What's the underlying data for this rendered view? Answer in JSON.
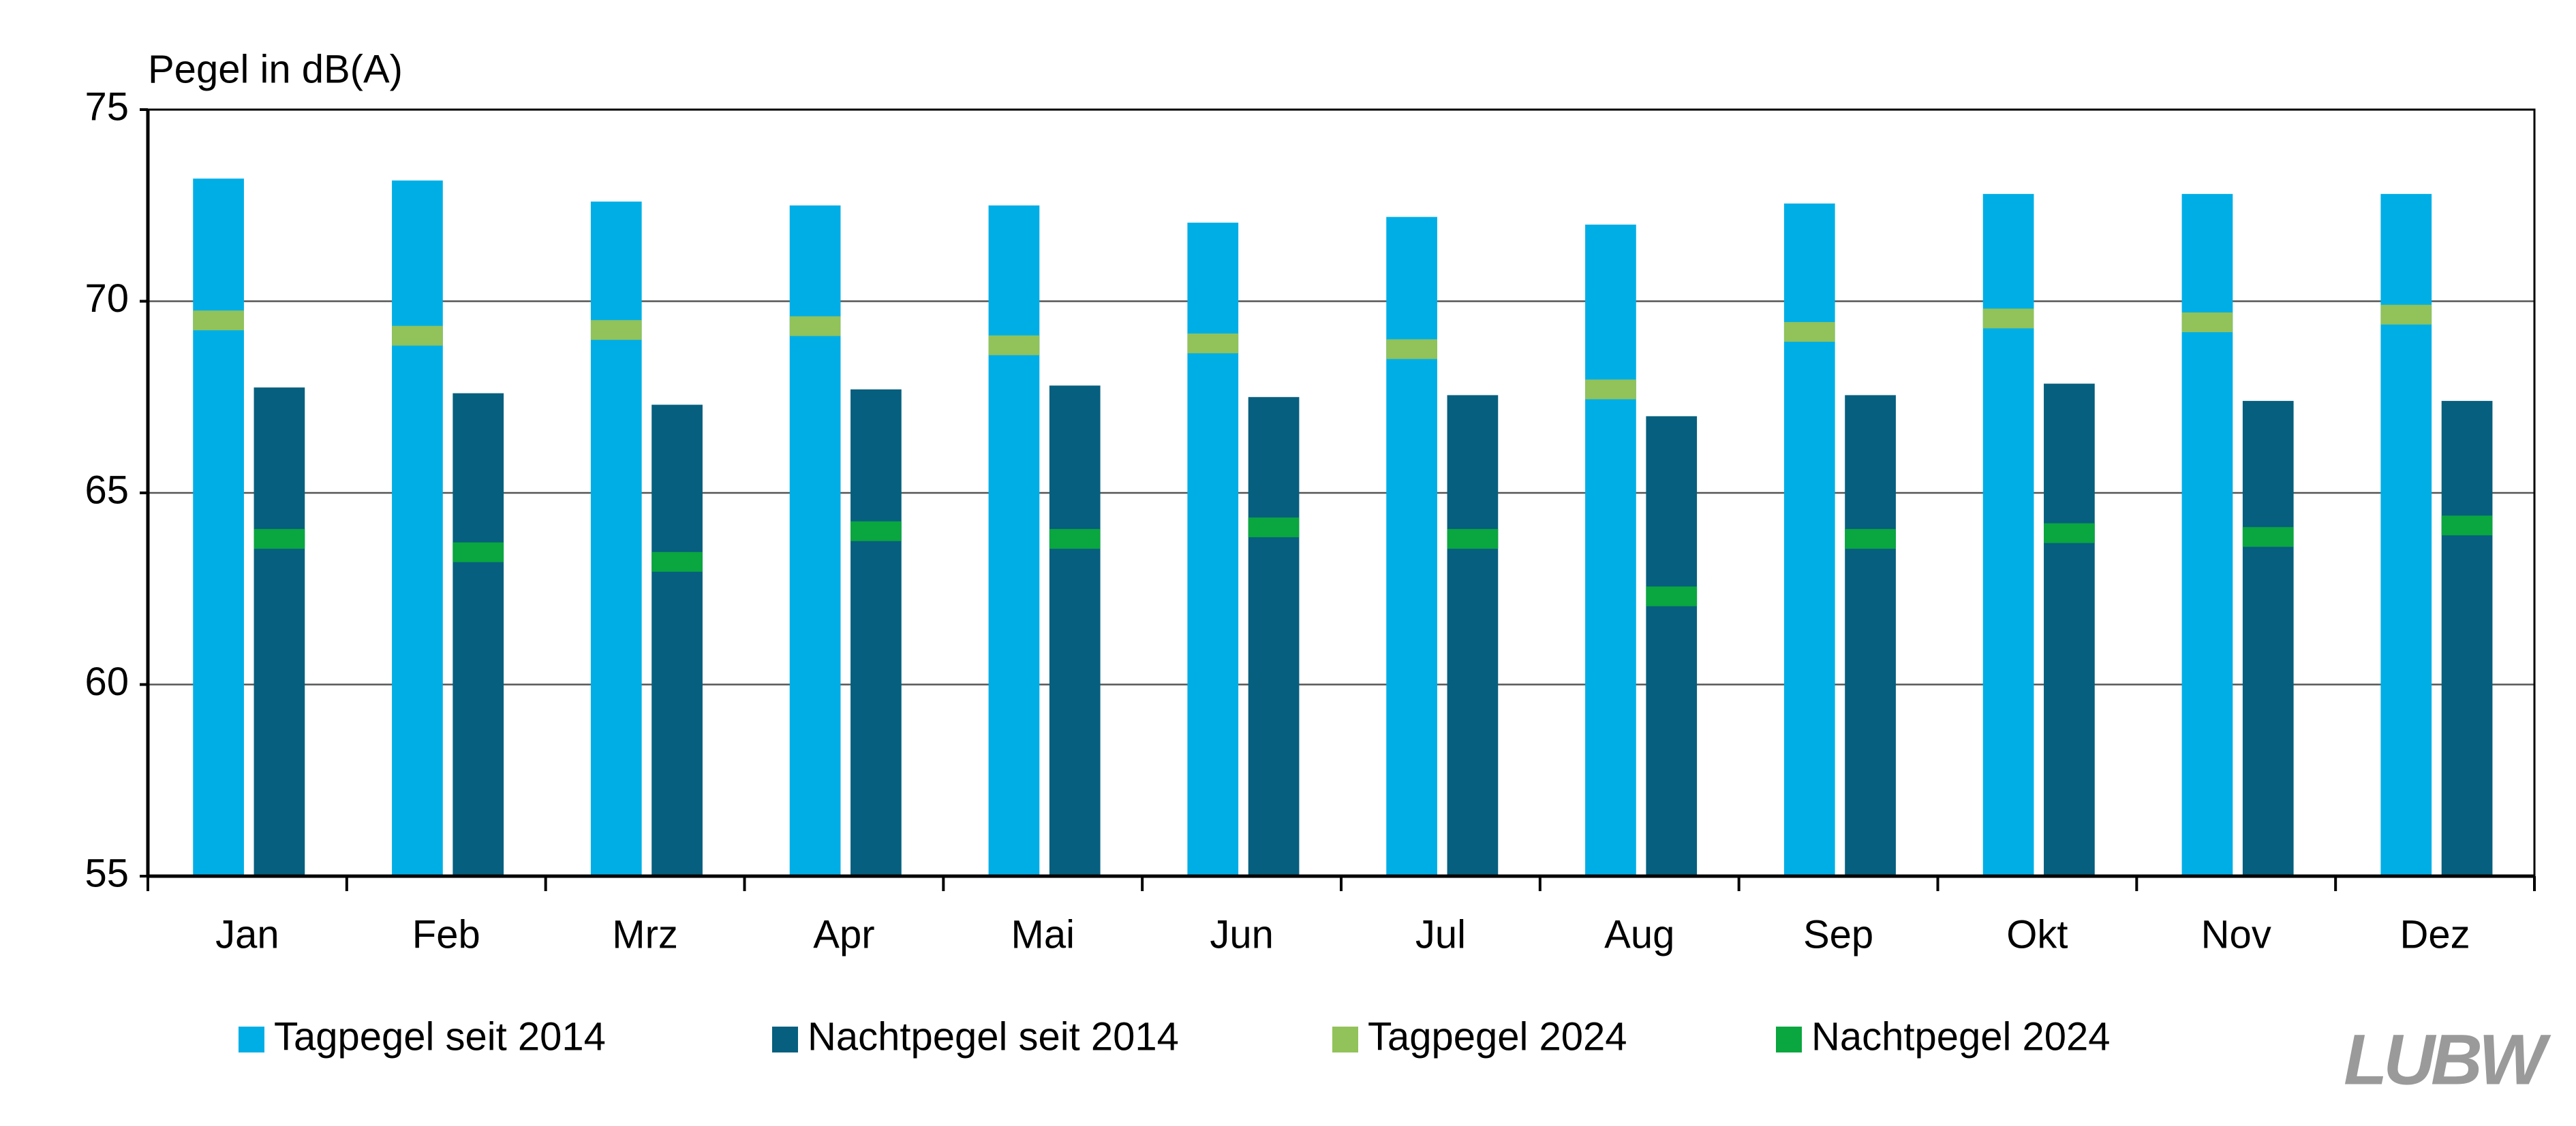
{
  "chart_data": {
    "type": "bar",
    "y_axis_title": "Pegel in dB(A)",
    "categories": [
      "Jan",
      "Feb",
      "Mrz",
      "Apr",
      "Mai",
      "Jun",
      "Jul",
      "Aug",
      "Sep",
      "Okt",
      "Nov",
      "Dez"
    ],
    "series": [
      {
        "name": "Tagpegel seit 2014",
        "color": "#00aee6",
        "style": "bar",
        "values": [
          73.2,
          73.15,
          72.6,
          72.5,
          72.5,
          72.05,
          72.2,
          72.0,
          72.55,
          72.8,
          72.8,
          72.8
        ]
      },
      {
        "name": "Nachtpegel seit 2014",
        "color": "#065f7e",
        "style": "bar",
        "values": [
          67.75,
          67.6,
          67.3,
          67.7,
          67.8,
          67.5,
          67.55,
          67.0,
          67.55,
          67.85,
          67.4,
          67.4
        ]
      },
      {
        "name": "Tagpegel 2024",
        "color": "#92c25a",
        "style": "marker",
        "values": [
          69.5,
          69.1,
          69.25,
          69.35,
          68.85,
          68.9,
          68.75,
          67.7,
          69.2,
          69.55,
          69.45,
          69.65
        ]
      },
      {
        "name": "Nachtpegel 2024",
        "color": "#0aa640",
        "style": "marker",
        "values": [
          63.8,
          63.45,
          63.2,
          64.0,
          63.8,
          64.1,
          63.8,
          62.3,
          63.8,
          63.95,
          63.85,
          64.15
        ]
      }
    ],
    "ylim": [
      55,
      75
    ],
    "yticks": [
      55,
      60,
      65,
      70,
      75
    ],
    "grid": true,
    "logo": "LUBW"
  }
}
